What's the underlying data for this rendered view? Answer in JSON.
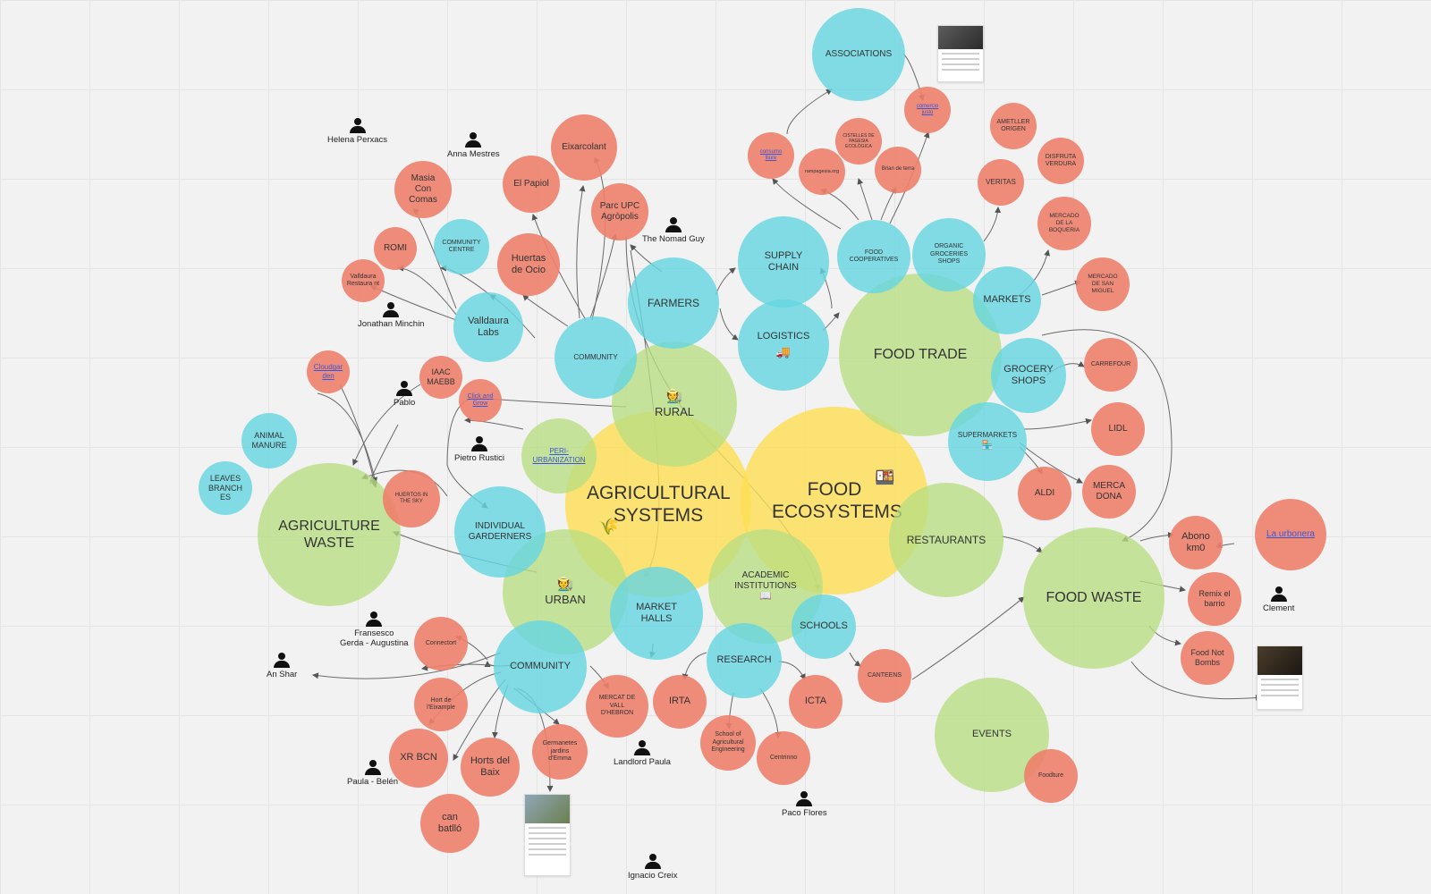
{
  "colors": {
    "yellow": "#FDDE55",
    "green": "#B9DE82",
    "cyan": "#66D6E0",
    "red": "#EE806C",
    "link": "#3B56D6",
    "background": "#F2F2F2"
  },
  "nodes": {
    "agri": {
      "label": "AGRICULTURAL SYSTEMS",
      "icon": "🌾"
    },
    "food": {
      "label": "FOOD ECOSYSTEMS",
      "icon": "🍱"
    },
    "rural": {
      "label": "RURAL",
      "icon": "🧑‍🌾"
    },
    "urban": {
      "label": "URBAN",
      "icon": "🧑‍🌾"
    },
    "peri": {
      "label": "PERI-URBANIZATION"
    },
    "academic": {
      "label": "ACADEMIC INSTITUTIONS",
      "icon": "📖"
    },
    "foodtrade": {
      "label": "FOOD TRADE"
    },
    "agriwaste": {
      "label": "AGRICULTURE WASTE"
    },
    "foodwaste": {
      "label": "FOOD WASTE"
    },
    "restaurants": {
      "label": "RESTAURANTS"
    },
    "events": {
      "label": "EVENTS"
    },
    "associations": {
      "label": "ASSOCIATIONS"
    },
    "supplychain": {
      "label": "SUPPLY CHAIN"
    },
    "logistics": {
      "label": "LOGISTICS",
      "icon": "🚚"
    },
    "farmers": {
      "label": "FARMERS"
    },
    "community_top": {
      "label": "COMMUNITY"
    },
    "valldaura": {
      "label": "Valldaura Labs"
    },
    "community_centre": {
      "label": "COMMUNITY CENTRE"
    },
    "food_coops": {
      "label": "FOOD COOPERATIVES"
    },
    "organic_shops": {
      "label": "ORGANIC GROCERIES SHOPS"
    },
    "markets": {
      "label": "MARKETS"
    },
    "grocery": {
      "label": "GROCERY SHOPS"
    },
    "supermarkets": {
      "label": "SUPERMARKETS",
      "icon": "🏪"
    },
    "individual": {
      "label": "INDIVIDUAL GARDERNERS"
    },
    "animal": {
      "label": "ANIMAL MANURE"
    },
    "leaves": {
      "label": "LEAVES BRANCH ES"
    },
    "market_halls": {
      "label": "MARKET HALLS"
    },
    "community_bottom": {
      "label": "COMMUNITY"
    },
    "research": {
      "label": "RESEARCH"
    },
    "schools": {
      "label": "SCHOOLS"
    },
    "eixarcolant": {
      "label": "Eixarcolant"
    },
    "el_papiol": {
      "label": "El Papiol"
    },
    "masia": {
      "label": "Masia Con Comas"
    },
    "parc_upc": {
      "label": "Parc UPC Agròpolis"
    },
    "huertas": {
      "label": "Huertas de Ocio"
    },
    "romi": {
      "label": "ROMI"
    },
    "valldaura_rest": {
      "label": "Valldaura Restaura nt"
    },
    "cloudgardens": {
      "label": "Cloudgar den"
    },
    "iaac": {
      "label": "IAAC MAEBB"
    },
    "click_grow": {
      "label": "Click and Grow"
    },
    "huertos_sky": {
      "label": "HUERTOS IN THE SKY"
    },
    "consumo": {
      "label": "consumo lliure"
    },
    "comercio": {
      "label": "comercio justo"
    },
    "cistelles": {
      "label": "CISTELLES DE PAGESIA ECOLÒGICA"
    },
    "panpagesia": {
      "label": "rampagesia.org"
    },
    "brian": {
      "label": "Brian de terra"
    },
    "ametller": {
      "label": "AMETLLER ORIGEN"
    },
    "veritas": {
      "label": "VERITAS"
    },
    "disfruta": {
      "label": "DISFRUTA VERDURA"
    },
    "boqueria": {
      "label": "MERCADO DE LA BOQUERIA"
    },
    "san_miguel": {
      "label": "MERCADO DE SAN MIGUEL"
    },
    "carrefour": {
      "label": "CARREFOUR"
    },
    "lidl": {
      "label": "LIDL"
    },
    "aldi": {
      "label": "ALDI"
    },
    "mercadona": {
      "label": "MERCA DONA"
    },
    "abono": {
      "label": "Abono km0"
    },
    "urbanera": {
      "label": "La urbonera"
    },
    "remix": {
      "label": "Remix el barrio"
    },
    "food_not_bombs": {
      "label": "Food Not Bombs"
    },
    "foodture": {
      "label": "Foodture"
    },
    "connector": {
      "label": "Connectort"
    },
    "hort_eixample": {
      "label": "Hort de l'Eixample"
    },
    "xr_bcn": {
      "label": "XR BCN"
    },
    "horts_baix": {
      "label": "Horts del Baix"
    },
    "can_batllo": {
      "label": "can batlló"
    },
    "germanetes": {
      "label": "Germanetes jardins d'Emma"
    },
    "mercat_vall": {
      "label": "MERCAT DE VALL D'HEBRON"
    },
    "irta": {
      "label": "IRTA"
    },
    "icta": {
      "label": "ICTA"
    },
    "school_agri": {
      "label": "School of Agricultural Engineering"
    },
    "centrinno": {
      "label": "Centrinno"
    },
    "canteens": {
      "label": "CANTEENS"
    }
  },
  "people": {
    "helena": "Helena Perxacs",
    "anna": "Anna Mestres",
    "nomad": "The Nomad Guy",
    "jonathan": "Jonathan Minchin",
    "pablo": "Pablo",
    "pietro": "Pietro Rustici",
    "fransesco": "Fransesco\nGerda - Augustina",
    "anshar": "An Shar",
    "paula_belen": "Paula - Belén",
    "landlord": "Landlord Paula",
    "paco": "Paco Flores",
    "ignacio": "Ignacio Creix",
    "clement": "Clement"
  }
}
